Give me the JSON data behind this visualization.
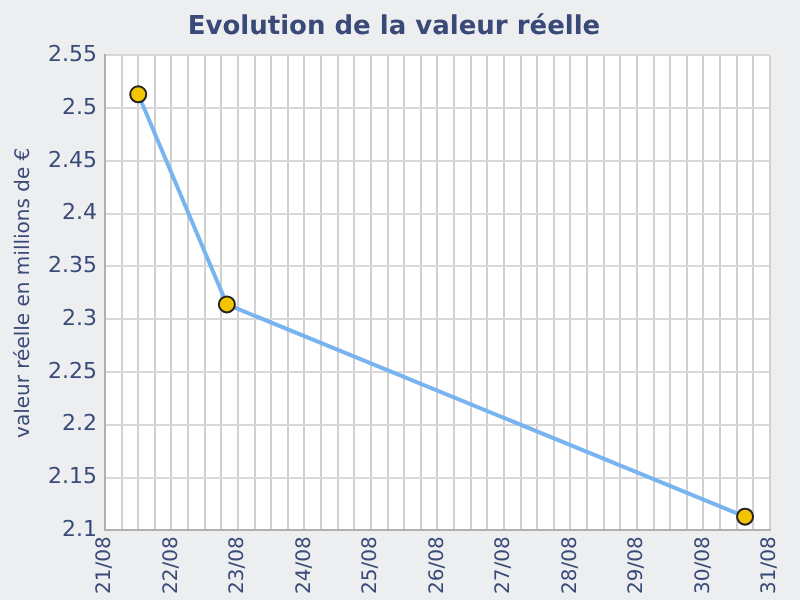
{
  "chart_data": {
    "type": "line",
    "title": "Evolution de la valeur réelle",
    "ylabel": "valeur réelle en millions de €",
    "x": [
      "--08-21T12:00",
      "--08-22T20:00",
      "--08-30T15:00"
    ],
    "series": [
      {
        "color": "#78b4f0",
        "values": [
          2.513,
          2.314,
          2.113
        ]
      }
    ],
    "marker": "circle",
    "line_style": "solid",
    "grid": true,
    "legend": false,
    "xlim": [
      "--08-21",
      "--08-31"
    ],
    "xticks": [
      {
        "value": "--08-21",
        "label": "21/08"
      },
      {
        "value": "--08-21T06:00",
        "label": null
      },
      {
        "value": "--08-21T12:00",
        "label": null
      },
      {
        "value": "--08-21T18:00",
        "label": null
      },
      {
        "value": "--08-22",
        "label": "22/08"
      },
      {
        "value": "--08-22T06:00",
        "label": null
      },
      {
        "value": "--08-22T12:00",
        "label": null
      },
      {
        "value": "--08-22T18:00",
        "label": null
      },
      {
        "value": "--08-23",
        "label": "23/08"
      },
      {
        "value": "--08-23T06:00",
        "label": null
      },
      {
        "value": "--08-23T12:00",
        "label": null
      },
      {
        "value": "--08-23T18:00",
        "label": null
      },
      {
        "value": "--08-24",
        "label": "24/08"
      },
      {
        "value": "--08-24T06:00",
        "label": null
      },
      {
        "value": "--08-24T12:00",
        "label": null
      },
      {
        "value": "--08-24T18:00",
        "label": null
      },
      {
        "value": "--08-25",
        "label": "25/08"
      },
      {
        "value": "--08-25T06:00",
        "label": null
      },
      {
        "value": "--08-25T12:00",
        "label": null
      },
      {
        "value": "--08-25T18:00",
        "label": null
      },
      {
        "value": "--08-26",
        "label": "26/08"
      },
      {
        "value": "--08-26T06:00",
        "label": null
      },
      {
        "value": "--08-26T12:00",
        "label": null
      },
      {
        "value": "--08-26T18:00",
        "label": null
      },
      {
        "value": "--08-27",
        "label": "27/08"
      },
      {
        "value": "--08-27T06:00",
        "label": null
      },
      {
        "value": "--08-27T12:00",
        "label": null
      },
      {
        "value": "--08-27T18:00",
        "label": null
      },
      {
        "value": "--08-28",
        "label": "28/08"
      },
      {
        "value": "--08-28T06:00",
        "label": null
      },
      {
        "value": "--08-28T12:00",
        "label": null
      },
      {
        "value": "--08-28T18:00",
        "label": null
      },
      {
        "value": "--08-29",
        "label": "29/08"
      },
      {
        "value": "--08-29T06:00",
        "label": null
      },
      {
        "value": "--08-29T12:00",
        "label": null
      },
      {
        "value": "--08-29T18:00",
        "label": null
      },
      {
        "value": "--08-30",
        "label": "30/08"
      },
      {
        "value": "--08-30T06:00",
        "label": null
      },
      {
        "value": "--08-30T12:00",
        "label": null
      },
      {
        "value": "--08-30T18:00",
        "label": null
      },
      {
        "value": "--08-31",
        "label": "31/08"
      }
    ],
    "ylim": [
      2.1,
      2.55
    ],
    "yticks": [
      2.1,
      2.15,
      2.2,
      2.25,
      2.3,
      2.35,
      2.4,
      2.45,
      2.5,
      2.55
    ]
  }
}
